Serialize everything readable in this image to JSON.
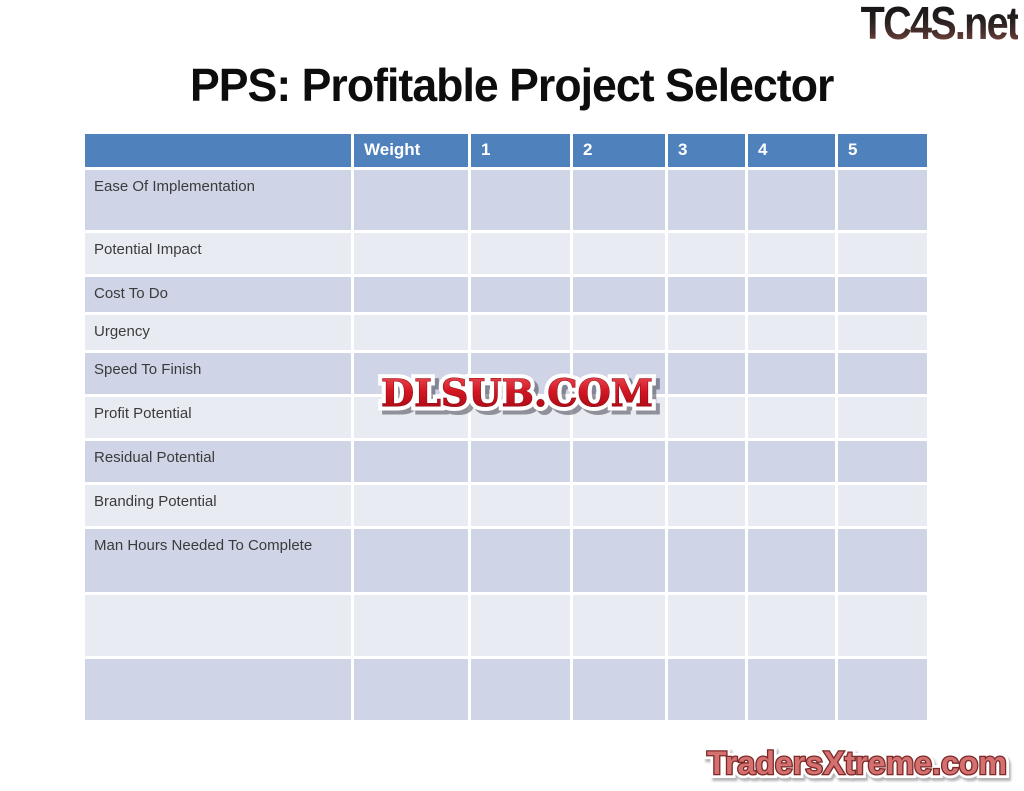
{
  "title": {
    "text": "PPS: Profitable Project Selector"
  },
  "logos": {
    "top": "TC4S.net",
    "bottom": "TradersXtreme.com"
  },
  "watermark": {
    "text": "DLSUB.COM"
  },
  "table": {
    "header": [
      "",
      "Weight",
      "1",
      "2",
      "3",
      "4",
      "5"
    ],
    "rows": [
      {
        "label": "Ease Of Implementation",
        "cells": [
          "",
          "",
          "",
          "",
          "",
          ""
        ]
      },
      {
        "label": "Potential Impact",
        "cells": [
          "",
          "",
          "",
          "",
          "",
          ""
        ]
      },
      {
        "label": "Cost To Do",
        "cells": [
          "",
          "",
          "",
          "",
          "",
          ""
        ]
      },
      {
        "label": "Urgency",
        "cells": [
          "",
          "",
          "",
          "",
          "",
          ""
        ]
      },
      {
        "label": "Speed To Finish",
        "cells": [
          "",
          "",
          "",
          "",
          "",
          ""
        ]
      },
      {
        "label": "Profit Potential",
        "cells": [
          "",
          "",
          "",
          "",
          "",
          ""
        ]
      },
      {
        "label": "Residual Potential",
        "cells": [
          "",
          "",
          "",
          "",
          "",
          ""
        ]
      },
      {
        "label": "Branding Potential",
        "cells": [
          "",
          "",
          "",
          "",
          "",
          ""
        ]
      },
      {
        "label": "Man Hours Needed To Complete",
        "cells": [
          "",
          "",
          "",
          "",
          "",
          ""
        ]
      },
      {
        "label": "",
        "cells": [
          "",
          "",
          "",
          "",
          "",
          ""
        ]
      },
      {
        "label": "",
        "cells": [
          "",
          "",
          "",
          "",
          "",
          ""
        ]
      }
    ]
  },
  "colors": {
    "header_bg": "#4F81BD",
    "row_dark": "#CFD5E7",
    "row_light": "#E9EBF3",
    "grid_border": "#FFFFFF",
    "header_text": "#FFFFFF",
    "row_label_text": "#3B3B3B",
    "title_text": "#0D0D0D",
    "watermark_red": "#C6101D",
    "bottom_logo_fill": "#D4706F",
    "bottom_logo_outline": "#7C2A28",
    "top_logo_dark": "#1F1F1F",
    "top_logo_red": "#7A4A44"
  }
}
